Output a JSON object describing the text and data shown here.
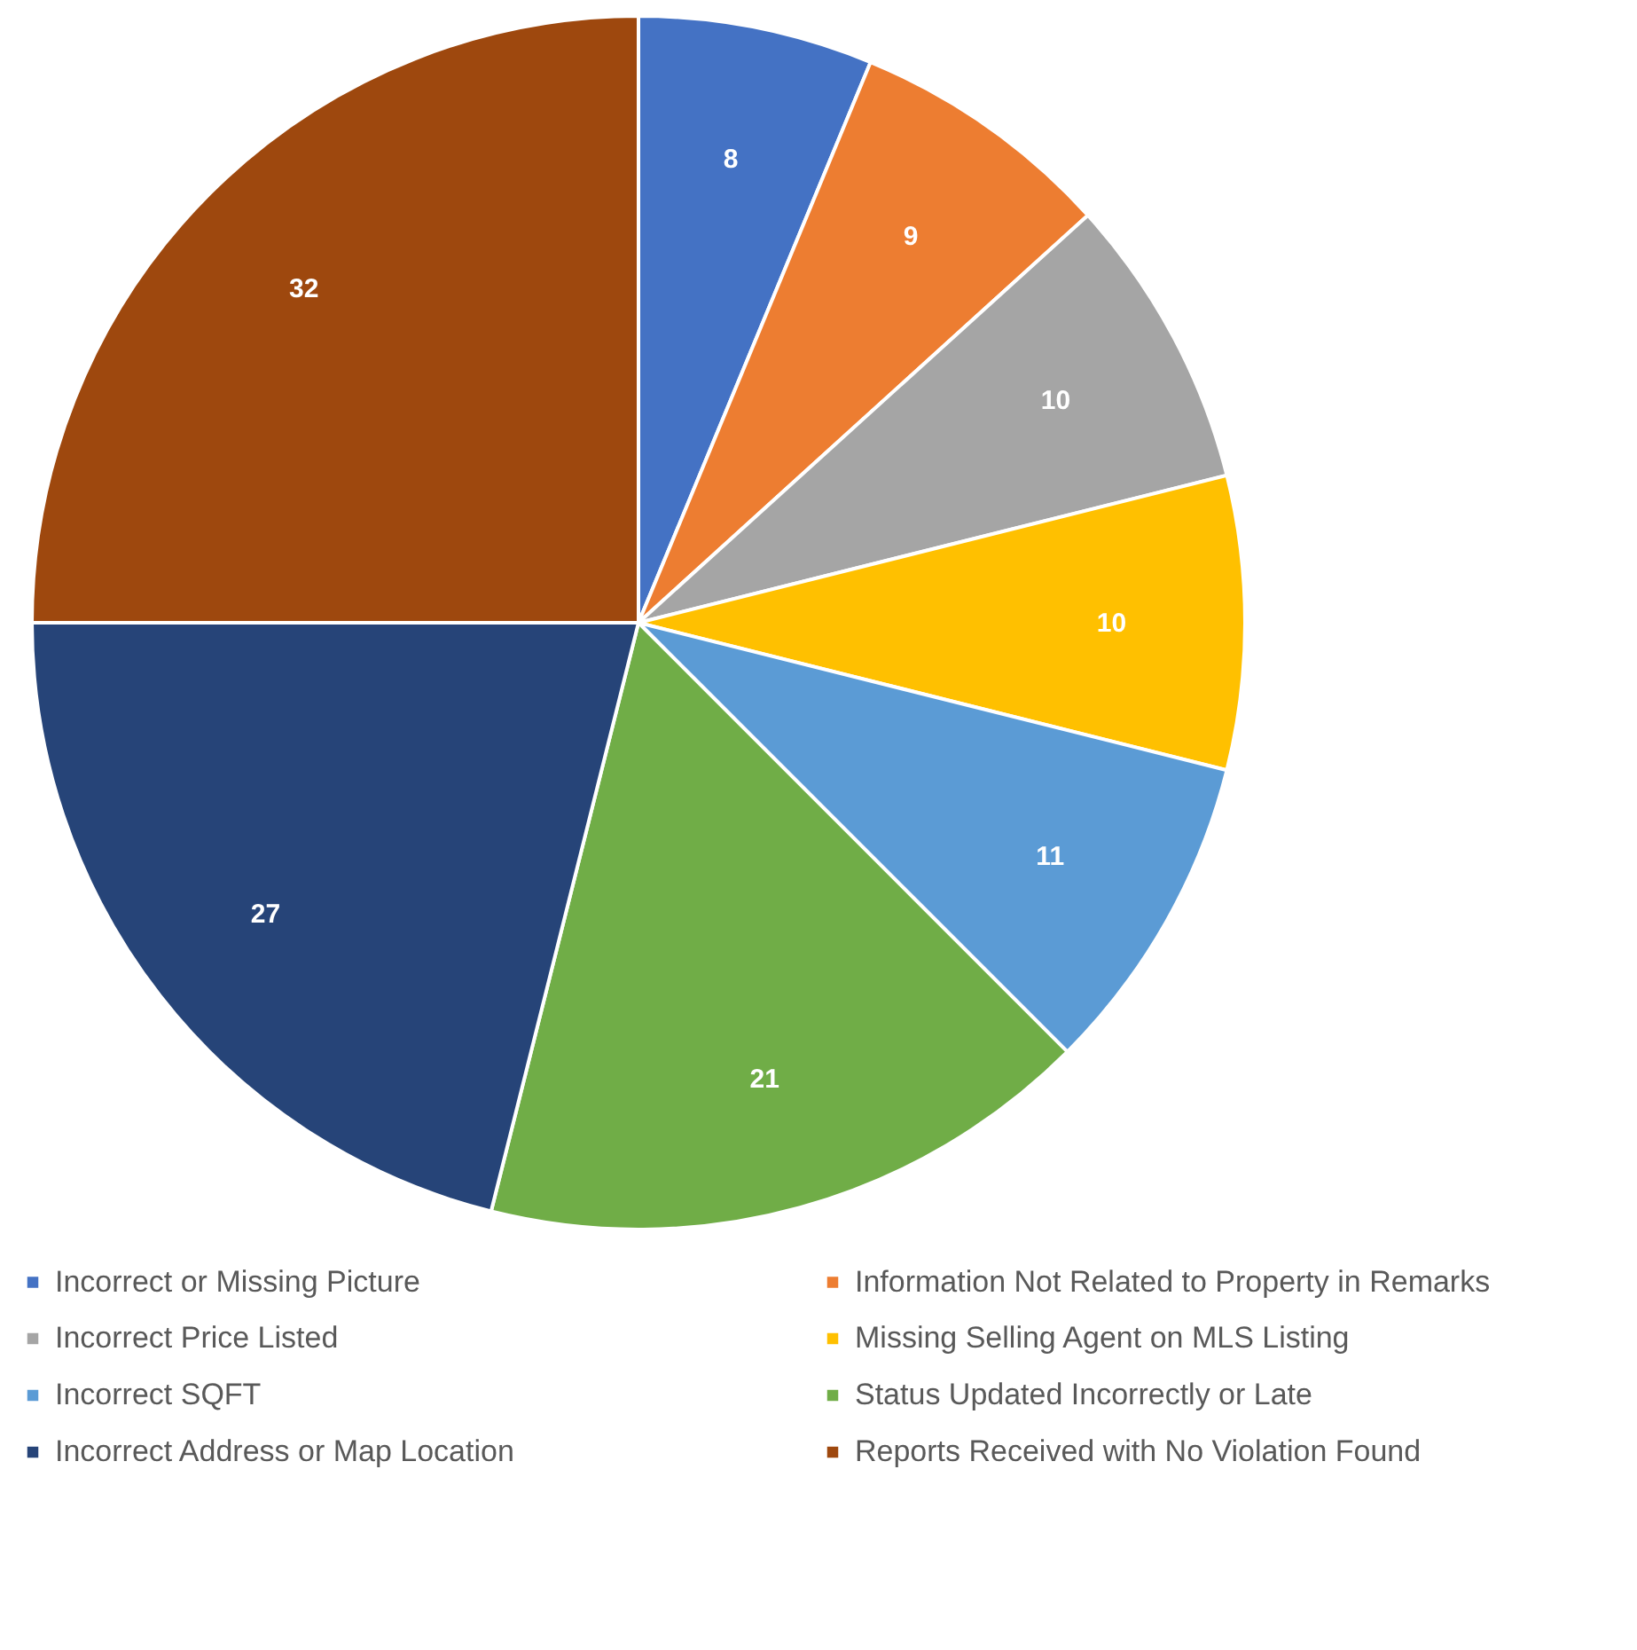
{
  "chart_data": {
    "type": "pie",
    "categories": [
      "Incorrect or Missing Picture",
      "Information Not Related to Property in Remarks",
      "Incorrect Price Listed",
      "Missing Selling Agent on MLS Listing",
      "Incorrect SQFT",
      "Status Updated Incorrectly or Late",
      "Incorrect Address or Map Location",
      "Reports Received with No Violation Found"
    ],
    "values": [
      8,
      9,
      10,
      10,
      11,
      21,
      27,
      32
    ],
    "colors": [
      "#4472c4",
      "#ed7d31",
      "#a5a5a5",
      "#ffc000",
      "#5b9bd5",
      "#70ad47",
      "#264478",
      "#9e480e"
    ],
    "data_labels": true,
    "legend": "bottom"
  }
}
